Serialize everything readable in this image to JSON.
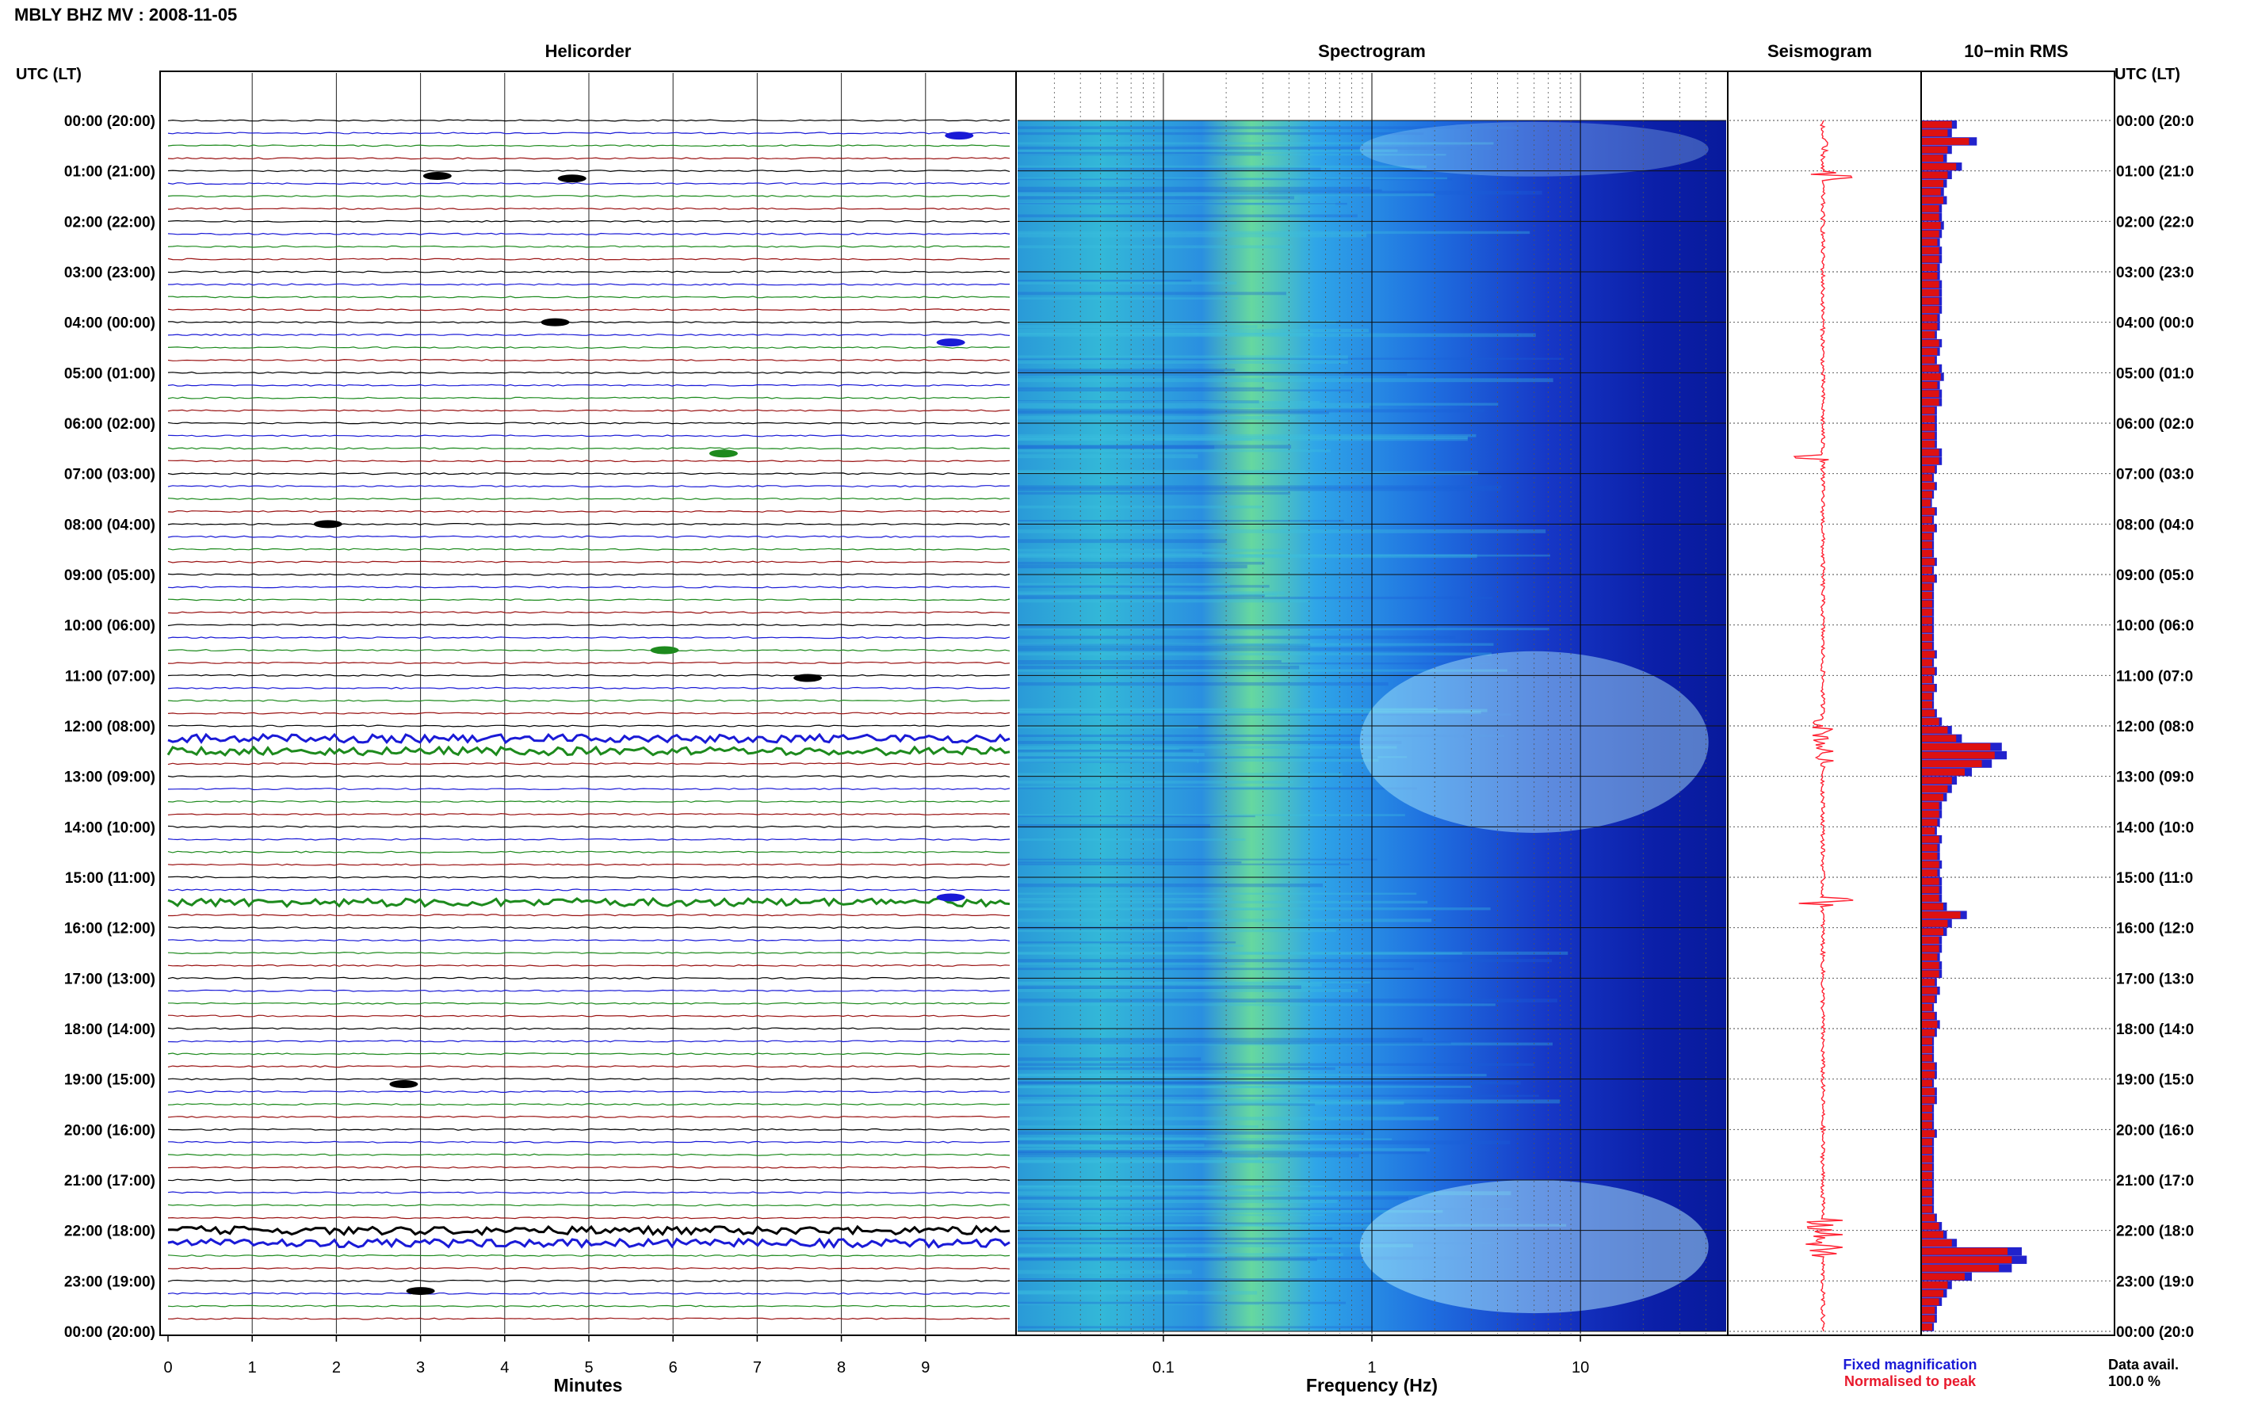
{
  "header": {
    "station_title": "MBLY BHZ MV : 2008-11-05",
    "axis_left_label": "UTC (LT)",
    "axis_right_label": "UTC (LT)"
  },
  "panels": {
    "helicorder": "Helicorder",
    "spectrogram": "Spectrogram",
    "seismogram": "Seismogram",
    "rms": "10−min RMS"
  },
  "time_labels": [
    "00:00 (20:00)",
    "01:00 (21:00)",
    "02:00 (22:00)",
    "03:00 (23:00)",
    "04:00 (00:00)",
    "05:00 (01:00)",
    "06:00 (02:00)",
    "07:00 (03:00)",
    "08:00 (04:00)",
    "09:00 (05:00)",
    "10:00 (06:00)",
    "11:00 (07:00)",
    "12:00 (08:00)",
    "13:00 (09:00)",
    "14:00 (10:00)",
    "15:00 (11:00)",
    "16:00 (12:00)",
    "17:00 (13:00)",
    "18:00 (14:00)",
    "19:00 (15:00)",
    "20:00 (16:00)",
    "21:00 (17:00)",
    "22:00 (18:00)",
    "23:00 (19:00)",
    "00:00 (20:00)"
  ],
  "time_labels_right_clipped": [
    "00:00 (20:0",
    "01:00 (21:0",
    "02:00 (22:0",
    "03:00 (23:0",
    "04:00 (00:0",
    "05:00 (01:0",
    "06:00 (02:0",
    "07:00 (03:0",
    "08:00 (04:0",
    "09:00 (05:0",
    "10:00 (06:0",
    "11:00 (07:0",
    "12:00 (08:0",
    "13:00 (09:0",
    "14:00 (10:0",
    "15:00 (11:0",
    "16:00 (12:0",
    "17:00 (13:0",
    "18:00 (14:0",
    "19:00 (15:0",
    "20:00 (16:0",
    "21:00 (17:0",
    "22:00 (18:0",
    "23:00 (19:0",
    "00:00 (20:0"
  ],
  "helicorder_axis": {
    "ticks": [
      "0",
      "1",
      "2",
      "3",
      "4",
      "5",
      "6",
      "7",
      "8",
      "9"
    ],
    "label": "Minutes"
  },
  "spectrogram_axis": {
    "ticks": [
      "0.1",
      "1",
      "10"
    ],
    "label": "Frequency (Hz)"
  },
  "legend": {
    "fixed": "Fixed magnification",
    "normalised": "Normalised to peak",
    "fixed_color": "#1a1ad6",
    "normalised_color": "#e8192c"
  },
  "data_avail": {
    "label": "Data avail.",
    "value": "100.0 %"
  },
  "colors": {
    "trace_cycle": [
      "#000000",
      "#1a1ad6",
      "#1d8a1d",
      "#9a1212"
    ],
    "spectrogram_bg": "#0a1a9a",
    "seismogram": "#ff2233",
    "rms_fixed": "#2222cc",
    "rms_normalised": "#dd1111"
  },
  "events": {
    "strong_hours": [
      12.15,
      12.45,
      21.95,
      22.15,
      15.5
    ],
    "moderate_hours": [
      1.1,
      4.2,
      6.7,
      4.6,
      0.3
    ]
  },
  "rms": [
    0.35,
    0.3,
    0.55,
    0.3,
    0.25,
    0.4,
    0.3,
    0.25,
    0.22,
    0.25,
    0.2,
    0.2,
    0.22,
    0.2,
    0.18,
    0.2,
    0.2,
    0.18,
    0.18,
    0.2,
    0.2,
    0.2,
    0.2,
    0.18,
    0.18,
    0.15,
    0.2,
    0.18,
    0.15,
    0.2,
    0.22,
    0.18,
    0.2,
    0.2,
    0.15,
    0.15,
    0.15,
    0.15,
    0.15,
    0.2,
    0.2,
    0.15,
    0.12,
    0.15,
    0.12,
    0.1,
    0.15,
    0.12,
    0.15,
    0.12,
    0.12,
    0.12,
    0.15,
    0.12,
    0.15,
    0.12,
    0.12,
    0.12,
    0.12,
    0.12,
    0.12,
    0.12,
    0.12,
    0.15,
    0.12,
    0.15,
    0.12,
    0.15,
    0.12,
    0.12,
    0.15,
    0.2,
    0.3,
    0.4,
    0.8,
    0.85,
    0.7,
    0.5,
    0.35,
    0.3,
    0.25,
    0.2,
    0.2,
    0.18,
    0.15,
    0.2,
    0.18,
    0.18,
    0.2,
    0.18,
    0.2,
    0.2,
    0.2,
    0.25,
    0.45,
    0.3,
    0.25,
    0.2,
    0.2,
    0.18,
    0.2,
    0.2,
    0.15,
    0.18,
    0.15,
    0.12,
    0.15,
    0.18,
    0.15,
    0.12,
    0.12,
    0.12,
    0.15,
    0.15,
    0.12,
    0.15,
    0.15,
    0.12,
    0.12,
    0.12,
    0.15,
    0.12,
    0.12,
    0.12,
    0.12,
    0.12,
    0.12,
    0.12,
    0.12,
    0.12,
    0.15,
    0.2,
    0.25,
    0.35,
    1.0,
    1.05,
    0.9,
    0.5,
    0.3,
    0.25,
    0.2,
    0.15,
    0.15,
    0.12
  ]
}
